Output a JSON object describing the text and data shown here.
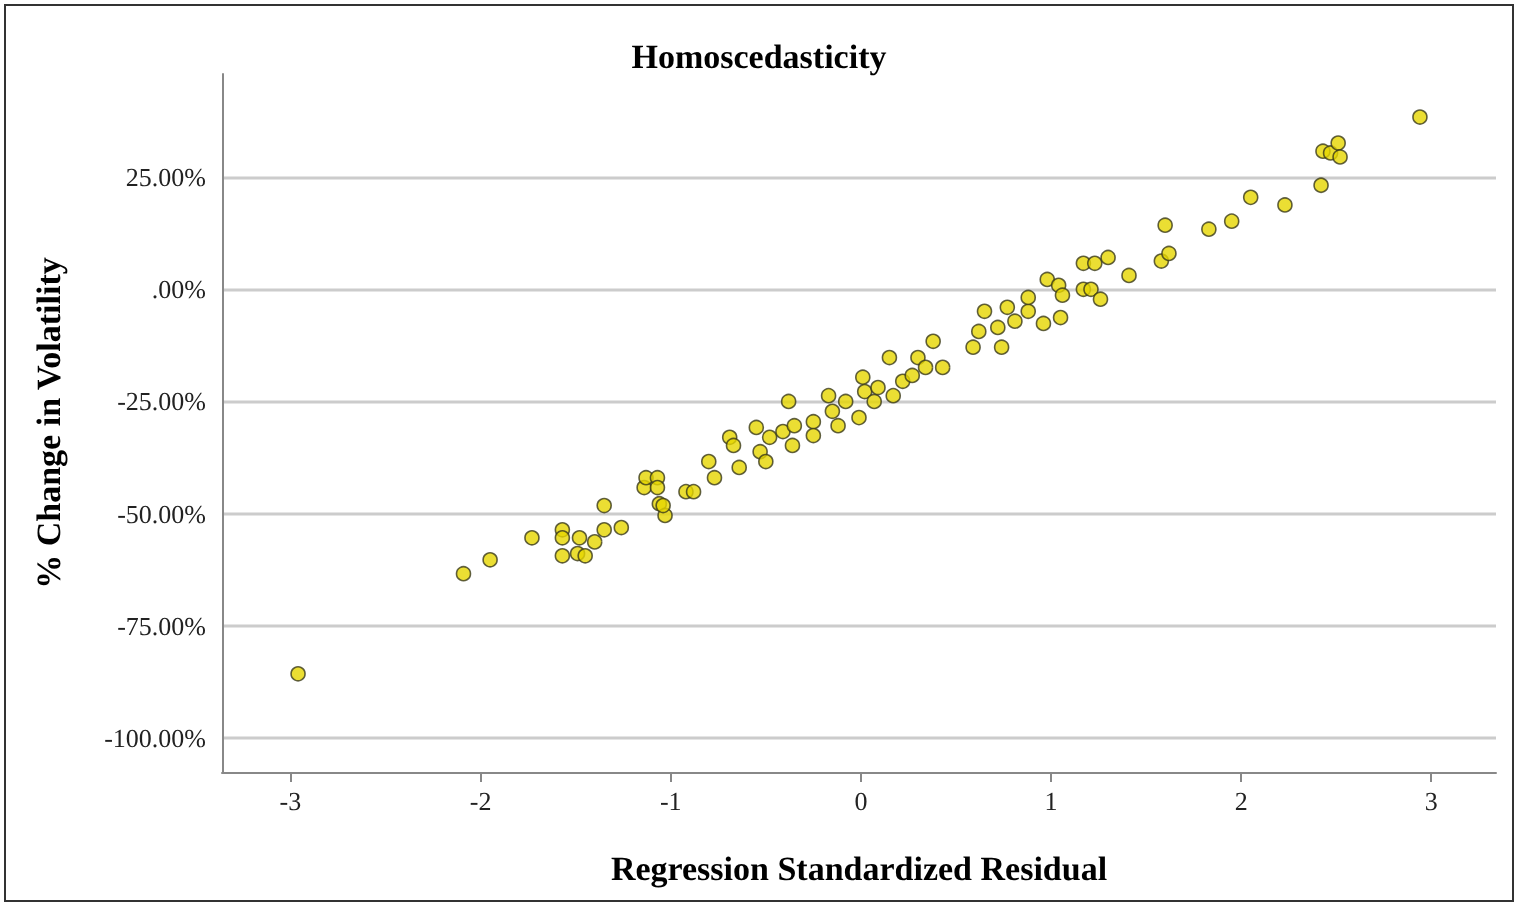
{
  "chart_data": {
    "type": "scatter",
    "title": "Homoscedasticity",
    "xlabel": "Regression Standardized Residual",
    "ylabel": "% Change in Volatility",
    "xlim": [
      -3.36,
      3.34
    ],
    "xticks": [
      -3,
      -2,
      -1,
      0,
      1,
      2,
      3
    ],
    "ylim": [
      -107.6,
      48
    ],
    "yticks": [
      {
        "value": -100,
        "label": "-100.00%"
      },
      {
        "value": -75,
        "label": "-75.00%"
      },
      {
        "value": -50,
        "label": "-50.00%"
      },
      {
        "value": -25,
        "label": "-25.00%"
      },
      {
        "value": 0,
        "label": ".00%"
      },
      {
        "value": 25,
        "label": "25.00%"
      }
    ],
    "grid": "y",
    "marker": "circle",
    "series": [
      {
        "color": "#e6d600",
        "x": [
          -2.96,
          -2.09,
          -1.95,
          -1.73,
          -1.57,
          -1.57,
          -1.57,
          -1.48,
          -1.49,
          -1.45,
          -1.4,
          -1.35,
          -1.35,
          -1.26,
          -1.14,
          -1.13,
          -1.07,
          -1.07,
          -1.06,
          -1.03,
          -1.04,
          -0.92,
          -0.88,
          -0.8,
          -0.77,
          -0.69,
          -0.67,
          -0.64,
          -0.55,
          -0.53,
          -0.5,
          -0.48,
          -0.41,
          -0.38,
          -0.36,
          -0.35,
          -0.25,
          -0.25,
          -0.17,
          -0.15,
          -0.12,
          -0.08,
          -0.01,
          0.01,
          0.02,
          0.07,
          0.09,
          0.15,
          0.17,
          0.22,
          0.27,
          0.3,
          0.34,
          0.38,
          0.43,
          0.59,
          0.62,
          0.65,
          0.72,
          0.74,
          0.81,
          0.88,
          0.77,
          0.88,
          0.98,
          1.04,
          1.06,
          0.96,
          1.05,
          1.17,
          1.21,
          1.26,
          1.17,
          1.23,
          1.3,
          1.41,
          1.58,
          1.62,
          1.6,
          1.83,
          1.95,
          2.05,
          2.23,
          2.42,
          2.43,
          2.47,
          2.51,
          2.52,
          2.94
        ],
        "values": [
          -85.7,
          -63.4,
          -60.3,
          -55.4,
          -53.6,
          -55.4,
          -59.4,
          -55.4,
          -58.9,
          -59.4,
          -56.3,
          -53.6,
          -48.2,
          -53.1,
          -44.2,
          -42,
          -42,
          -44.2,
          -47.8,
          -50.4,
          -48.2,
          -45.1,
          -45.1,
          -38.4,
          -42,
          -33,
          -34.8,
          -39.7,
          -30.8,
          -36.2,
          -38.4,
          -33,
          -31.7,
          -25,
          -34.8,
          -30.4,
          -29.5,
          -32.6,
          -23.7,
          -27.2,
          -30.4,
          -25,
          -28.6,
          -19.6,
          -22.8,
          -25,
          -21.9,
          -15.2,
          -23.7,
          -20.5,
          -19.2,
          -15.2,
          -17.4,
          -11.6,
          -17.4,
          -12.9,
          -9.4,
          -4.9,
          -8.5,
          -12.9,
          -7.1,
          -4.9,
          -4,
          -1.8,
          2.2,
          0.9,
          -1.3,
          -7.6,
          -6.3,
          0,
          0,
          -2.2,
          5.8,
          5.8,
          7.1,
          3.1,
          6.3,
          8,
          14.3,
          13.4,
          15.2,
          20.5,
          18.8,
          23.2,
          30.8,
          30.4,
          32.6,
          29.5,
          38.4
        ]
      }
    ]
  }
}
